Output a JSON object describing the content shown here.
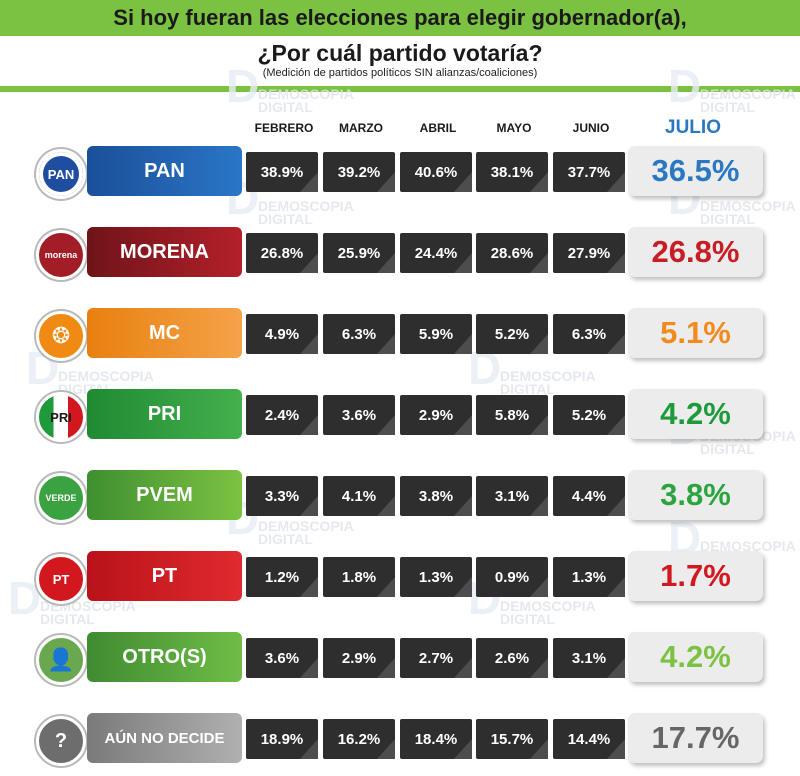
{
  "header": {
    "title": "Si hoy fueran las elecciones para elegir gobernador(a),",
    "question": "¿Por cuál partido votaría?",
    "note": "(Medición de partidos políticos SIN alianzas/coaliciones)"
  },
  "watermark": {
    "line1": "DEMOSCOPIA",
    "line2": "DIGITAL"
  },
  "colors": {
    "accent_green": "#7cc242",
    "PAN": "#1f5fb0",
    "MORENA": "#8e1d22",
    "MC": "#f08a12",
    "PRI": "#2e9a3c",
    "PVEM": "#5aa642",
    "PT": "#d3171f",
    "OTRO": "#4f9d3c",
    "AUN": "#8e8e8e"
  },
  "chart_data": {
    "type": "table",
    "title": "Si hoy fueran las elecciones para elegir gobernador(a), ¿Por cuál partido votaría?",
    "subtitle": "(Medición de partidos políticos SIN alianzas/coaliciones)",
    "columns": [
      "FEBRERO",
      "MARZO",
      "ABRIL",
      "MAYO",
      "JUNIO",
      "JULIO"
    ],
    "rows": [
      {
        "party": "PAN",
        "logo": "PAN",
        "values": [
          "38.9%",
          "39.2%",
          "40.6%",
          "38.1%",
          "37.7%",
          "36.5%"
        ],
        "color": "#2b78c2"
      },
      {
        "party": "MORENA",
        "logo": "morena",
        "values": [
          "26.8%",
          "25.9%",
          "24.4%",
          "28.6%",
          "27.9%",
          "26.8%"
        ],
        "color": "#c81d25"
      },
      {
        "party": "MC",
        "logo": "",
        "values": [
          "4.9%",
          "6.3%",
          "5.9%",
          "5.2%",
          "6.3%",
          "5.1%"
        ],
        "color": "#f28a1c"
      },
      {
        "party": "PRI",
        "logo": "PRI",
        "values": [
          "2.4%",
          "3.6%",
          "2.9%",
          "5.8%",
          "5.2%",
          "4.2%"
        ],
        "color": "#1f9a3b"
      },
      {
        "party": "PVEM",
        "logo": "VERDE",
        "values": [
          "3.3%",
          "4.1%",
          "3.8%",
          "3.1%",
          "4.4%",
          "3.8%"
        ],
        "color": "#2ba43f"
      },
      {
        "party": "PT",
        "logo": "PT",
        "values": [
          "1.2%",
          "1.8%",
          "1.3%",
          "0.9%",
          "1.3%",
          "1.7%"
        ],
        "color": "#d3171f"
      },
      {
        "party": "OTRO(S)",
        "logo": "",
        "values": [
          "3.6%",
          "2.9%",
          "2.7%",
          "2.6%",
          "3.1%",
          "4.2%"
        ],
        "color": "#7cc242"
      },
      {
        "party": "AÚN NO DECIDE",
        "logo": "?",
        "values": [
          "18.9%",
          "16.2%",
          "18.4%",
          "15.7%",
          "14.4%",
          "17.7%"
        ],
        "color": "#666666"
      }
    ]
  }
}
